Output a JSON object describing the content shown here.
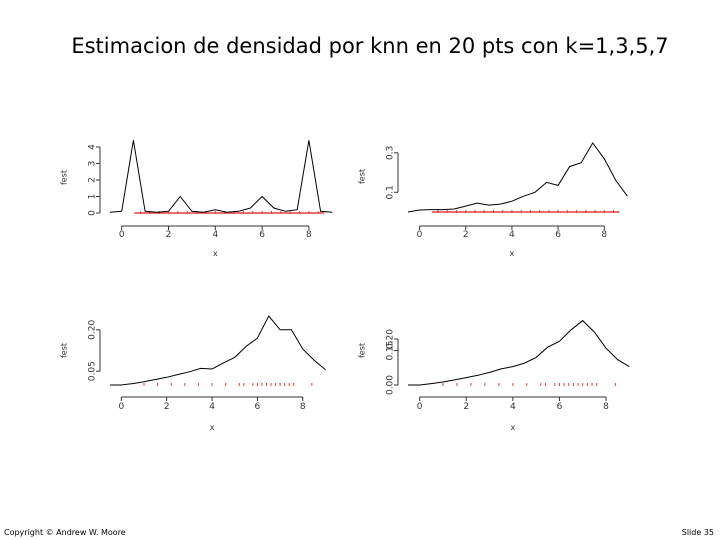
{
  "slide": {
    "title": "Estimacion de densidad por knn en 20 pts con k=1,3,5,7",
    "footer_left": "Copyright © Andrew W. Moore",
    "footer_right": "Slide 35"
  },
  "colors": {
    "curve": "#000000",
    "rug_k1": "#e04040",
    "rug": "#e04040",
    "axis": "#333333"
  },
  "chart_data": [
    {
      "type": "line",
      "title": "",
      "xlabel": "x",
      "ylabel": "fest",
      "xlim": [
        -0.5,
        9.2
      ],
      "ylim": [
        0,
        4.3
      ],
      "xticks": [
        0,
        2,
        4,
        6,
        8
      ],
      "yticks": [
        0,
        1,
        2,
        3,
        4
      ],
      "ytick_labels": [
        "0",
        "1",
        "2",
        "3",
        "4"
      ],
      "rug_style": "line",
      "rug": [
        0.8,
        1.2,
        1.6,
        2.0,
        2.4,
        2.8,
        3.2,
        3.6,
        4.0,
        4.4,
        4.8,
        5.2,
        5.6,
        6.0,
        6.4,
        6.8,
        7.2,
        7.6,
        8.0,
        8.4
      ],
      "series": [
        {
          "x": [
            -0.5,
            0,
            0.5,
            1.0,
            1.5,
            2.0,
            2.5,
            3.0,
            3.5,
            4.0,
            4.5,
            5.0,
            5.5,
            6.0,
            6.5,
            7.0,
            7.5,
            8.0,
            8.5,
            9.0
          ],
          "y": [
            0.05,
            0.1,
            4.4,
            0.1,
            0.05,
            0.1,
            1.0,
            0.1,
            0.05,
            0.2,
            0.05,
            0.1,
            0.3,
            1.0,
            0.3,
            0.1,
            0.2,
            4.4,
            0.1,
            0.05
          ]
        }
      ]
    },
    {
      "type": "line",
      "title": "",
      "xlabel": "x",
      "ylabel": "fest",
      "xlim": [
        -0.5,
        9.2
      ],
      "ylim": [
        0,
        0.36
      ],
      "xticks": [
        0,
        2,
        4,
        6,
        8
      ],
      "yticks": [
        0.1,
        0.3
      ],
      "ytick_labels": [
        "0.1",
        "0.3"
      ],
      "rug_style": "line",
      "rug": [
        0.8,
        1.2,
        1.6,
        2.0,
        2.4,
        2.8,
        3.2,
        3.6,
        4.0,
        4.4,
        4.8,
        5.2,
        5.6,
        6.0,
        6.4,
        6.8,
        7.2,
        7.6,
        8.0,
        8.4
      ],
      "series": [
        {
          "x": [
            -0.5,
            0,
            0.5,
            1.0,
            1.5,
            2.0,
            2.5,
            3.0,
            3.5,
            4.0,
            4.5,
            5.0,
            5.5,
            6.0,
            6.5,
            7.0,
            7.5,
            8.0,
            8.5,
            9.0
          ],
          "y": [
            0.0,
            0.01,
            0.012,
            0.012,
            0.015,
            0.03,
            0.045,
            0.035,
            0.04,
            0.055,
            0.08,
            0.1,
            0.15,
            0.135,
            0.23,
            0.25,
            0.35,
            0.27,
            0.16,
            0.08
          ]
        }
      ]
    },
    {
      "type": "line",
      "title": "",
      "xlabel": "x",
      "ylabel": "fest",
      "xlim": [
        -0.5,
        9.2
      ],
      "ylim": [
        0,
        0.25
      ],
      "xticks": [
        0,
        2,
        4,
        6,
        8
      ],
      "yticks": [
        0.05,
        0.2
      ],
      "ytick_labels": [
        "0.05",
        "0.20"
      ],
      "rug_style": "dots",
      "rug": [
        1.0,
        1.6,
        2.2,
        2.8,
        3.4,
        4.0,
        4.6,
        5.2,
        5.4,
        5.8,
        6.0,
        6.2,
        6.4,
        6.6,
        6.8,
        7.0,
        7.2,
        7.4,
        7.6,
        8.4
      ],
      "series": [
        {
          "x": [
            -0.5,
            0,
            0.5,
            1.0,
            1.5,
            2.0,
            2.5,
            3.0,
            3.5,
            4.0,
            4.5,
            5.0,
            5.5,
            6.0,
            6.5,
            7.0,
            7.5,
            8.0,
            8.5,
            9.0
          ],
          "y": [
            0.0,
            0.0,
            0.005,
            0.012,
            0.02,
            0.028,
            0.038,
            0.048,
            0.06,
            0.058,
            0.08,
            0.1,
            0.14,
            0.17,
            0.25,
            0.2,
            0.2,
            0.13,
            0.09,
            0.055
          ]
        }
      ]
    },
    {
      "type": "line",
      "title": "",
      "xlabel": "x",
      "ylabel": "fest",
      "xlim": [
        -0.5,
        9.2
      ],
      "ylim": [
        0,
        0.3
      ],
      "xticks": [
        0,
        2,
        4,
        6,
        8
      ],
      "yticks": [
        0.0,
        0.15,
        0.2
      ],
      "ytick_labels": [
        "0.00",
        "0.15",
        "0.20"
      ],
      "rug_style": "dots",
      "rug": [
        1.0,
        1.6,
        2.2,
        2.8,
        3.4,
        4.0,
        4.6,
        5.2,
        5.4,
        5.8,
        6.0,
        6.2,
        6.4,
        6.6,
        6.8,
        7.0,
        7.2,
        7.4,
        7.6,
        8.4
      ],
      "series": [
        {
          "x": [
            -0.5,
            0,
            0.5,
            1.0,
            1.5,
            2.0,
            2.5,
            3.0,
            3.5,
            4.0,
            4.5,
            5.0,
            5.5,
            6.0,
            6.5,
            7.0,
            7.5,
            8.0,
            8.5,
            9.0
          ],
          "y": [
            0.0,
            0.0,
            0.006,
            0.013,
            0.022,
            0.032,
            0.042,
            0.055,
            0.07,
            0.08,
            0.095,
            0.12,
            0.165,
            0.19,
            0.24,
            0.28,
            0.23,
            0.16,
            0.11,
            0.08
          ]
        }
      ]
    }
  ]
}
